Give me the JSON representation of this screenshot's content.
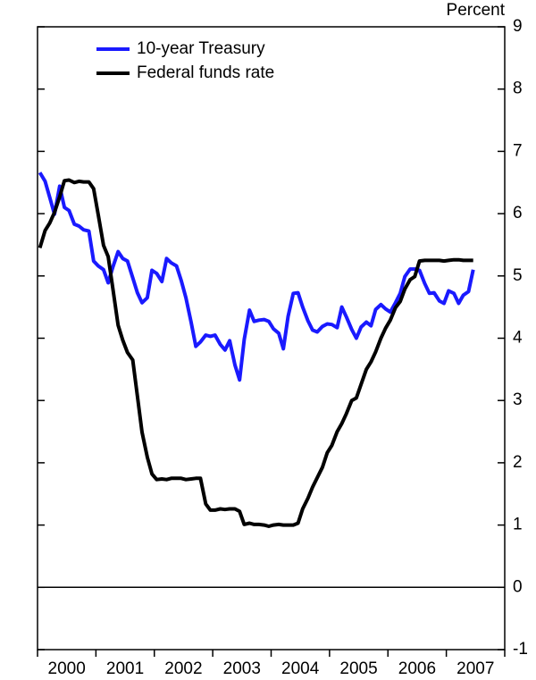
{
  "chart_data": {
    "type": "line",
    "y_axis_label": "Percent",
    "x": [
      2000.04,
      2000.13,
      2000.21,
      2000.29,
      2000.38,
      2000.46,
      2000.54,
      2000.63,
      2000.71,
      2000.79,
      2000.88,
      2000.96,
      2001.04,
      2001.13,
      2001.21,
      2001.29,
      2001.38,
      2001.46,
      2001.54,
      2001.63,
      2001.71,
      2001.79,
      2001.88,
      2001.96,
      2002.04,
      2002.13,
      2002.21,
      2002.29,
      2002.38,
      2002.46,
      2002.54,
      2002.63,
      2002.71,
      2002.79,
      2002.88,
      2002.96,
      2003.04,
      2003.13,
      2003.21,
      2003.29,
      2003.38,
      2003.46,
      2003.54,
      2003.63,
      2003.71,
      2003.79,
      2003.88,
      2003.96,
      2004.04,
      2004.13,
      2004.21,
      2004.29,
      2004.38,
      2004.46,
      2004.54,
      2004.63,
      2004.71,
      2004.79,
      2004.88,
      2004.96,
      2005.04,
      2005.13,
      2005.21,
      2005.29,
      2005.38,
      2005.46,
      2005.54,
      2005.63,
      2005.71,
      2005.79,
      2005.88,
      2005.96,
      2006.04,
      2006.13,
      2006.21,
      2006.29,
      2006.38,
      2006.46,
      2006.54,
      2006.63,
      2006.71,
      2006.79,
      2006.88,
      2006.96,
      2007.04,
      2007.13,
      2007.21,
      2007.29,
      2007.38,
      2007.46
    ],
    "series": [
      {
        "name": "10-year Treasury",
        "color": "#1a1aff",
        "values": [
          6.66,
          6.52,
          6.26,
          5.99,
          6.44,
          6.1,
          6.05,
          5.83,
          5.8,
          5.74,
          5.72,
          5.24,
          5.16,
          5.1,
          4.89,
          5.14,
          5.39,
          5.28,
          5.24,
          4.97,
          4.73,
          4.57,
          4.65,
          5.09,
          5.04,
          4.91,
          5.28,
          5.21,
          5.16,
          4.93,
          4.65,
          4.26,
          3.87,
          3.94,
          4.05,
          4.03,
          4.05,
          3.9,
          3.81,
          3.96,
          3.57,
          3.33,
          3.98,
          4.45,
          4.27,
          4.29,
          4.3,
          4.27,
          4.15,
          4.08,
          3.83,
          4.35,
          4.72,
          4.73,
          4.5,
          4.28,
          4.13,
          4.1,
          4.19,
          4.23,
          4.22,
          4.17,
          4.5,
          4.34,
          4.14,
          4.0,
          4.18,
          4.26,
          4.2,
          4.46,
          4.54,
          4.47,
          4.42,
          4.57,
          4.72,
          4.99,
          5.11,
          5.11,
          5.09,
          4.88,
          4.72,
          4.73,
          4.6,
          4.56,
          4.76,
          4.72,
          4.56,
          4.69,
          4.75,
          5.1
        ]
      },
      {
        "name": "Federal funds rate",
        "color": "#000000",
        "values": [
          5.45,
          5.73,
          5.85,
          6.02,
          6.27,
          6.53,
          6.54,
          6.5,
          6.52,
          6.51,
          6.51,
          6.4,
          5.98,
          5.49,
          5.31,
          4.8,
          4.21,
          3.97,
          3.77,
          3.65,
          3.07,
          2.49,
          2.09,
          1.82,
          1.73,
          1.74,
          1.73,
          1.75,
          1.75,
          1.75,
          1.73,
          1.74,
          1.75,
          1.75,
          1.34,
          1.24,
          1.24,
          1.26,
          1.25,
          1.26,
          1.26,
          1.22,
          1.01,
          1.03,
          1.01,
          1.01,
          1.0,
          0.98,
          1.0,
          1.01,
          1.0,
          1.0,
          1.0,
          1.03,
          1.26,
          1.43,
          1.61,
          1.76,
          1.93,
          2.16,
          2.28,
          2.5,
          2.63,
          2.79,
          3.0,
          3.04,
          3.26,
          3.5,
          3.62,
          3.78,
          4.0,
          4.16,
          4.29,
          4.49,
          4.59,
          4.79,
          4.94,
          4.99,
          5.24,
          5.25,
          5.25,
          5.25,
          5.25,
          5.24,
          5.25,
          5.26,
          5.26,
          5.25,
          5.25,
          5.25
        ]
      }
    ],
    "xlim": [
      2000,
      2008
    ],
    "xticks": [
      2000,
      2001,
      2002,
      2003,
      2004,
      2005,
      2006,
      2007,
      2008
    ],
    "year_labels": [
      {
        "value": 2000.5,
        "label": "2000"
      },
      {
        "value": 2001.5,
        "label": "2001"
      },
      {
        "value": 2002.5,
        "label": "2002"
      },
      {
        "value": 2003.5,
        "label": "2003"
      },
      {
        "value": 2004.5,
        "label": "2004"
      },
      {
        "value": 2005.5,
        "label": "2005"
      },
      {
        "value": 2006.5,
        "label": "2006"
      },
      {
        "value": 2007.5,
        "label": "2007"
      }
    ],
    "ylim": [
      -1,
      9
    ],
    "yticks": [
      -1,
      0,
      1,
      2,
      3,
      4,
      5,
      6,
      7,
      8,
      9
    ],
    "zero_line": 0,
    "legend": "upper left"
  }
}
